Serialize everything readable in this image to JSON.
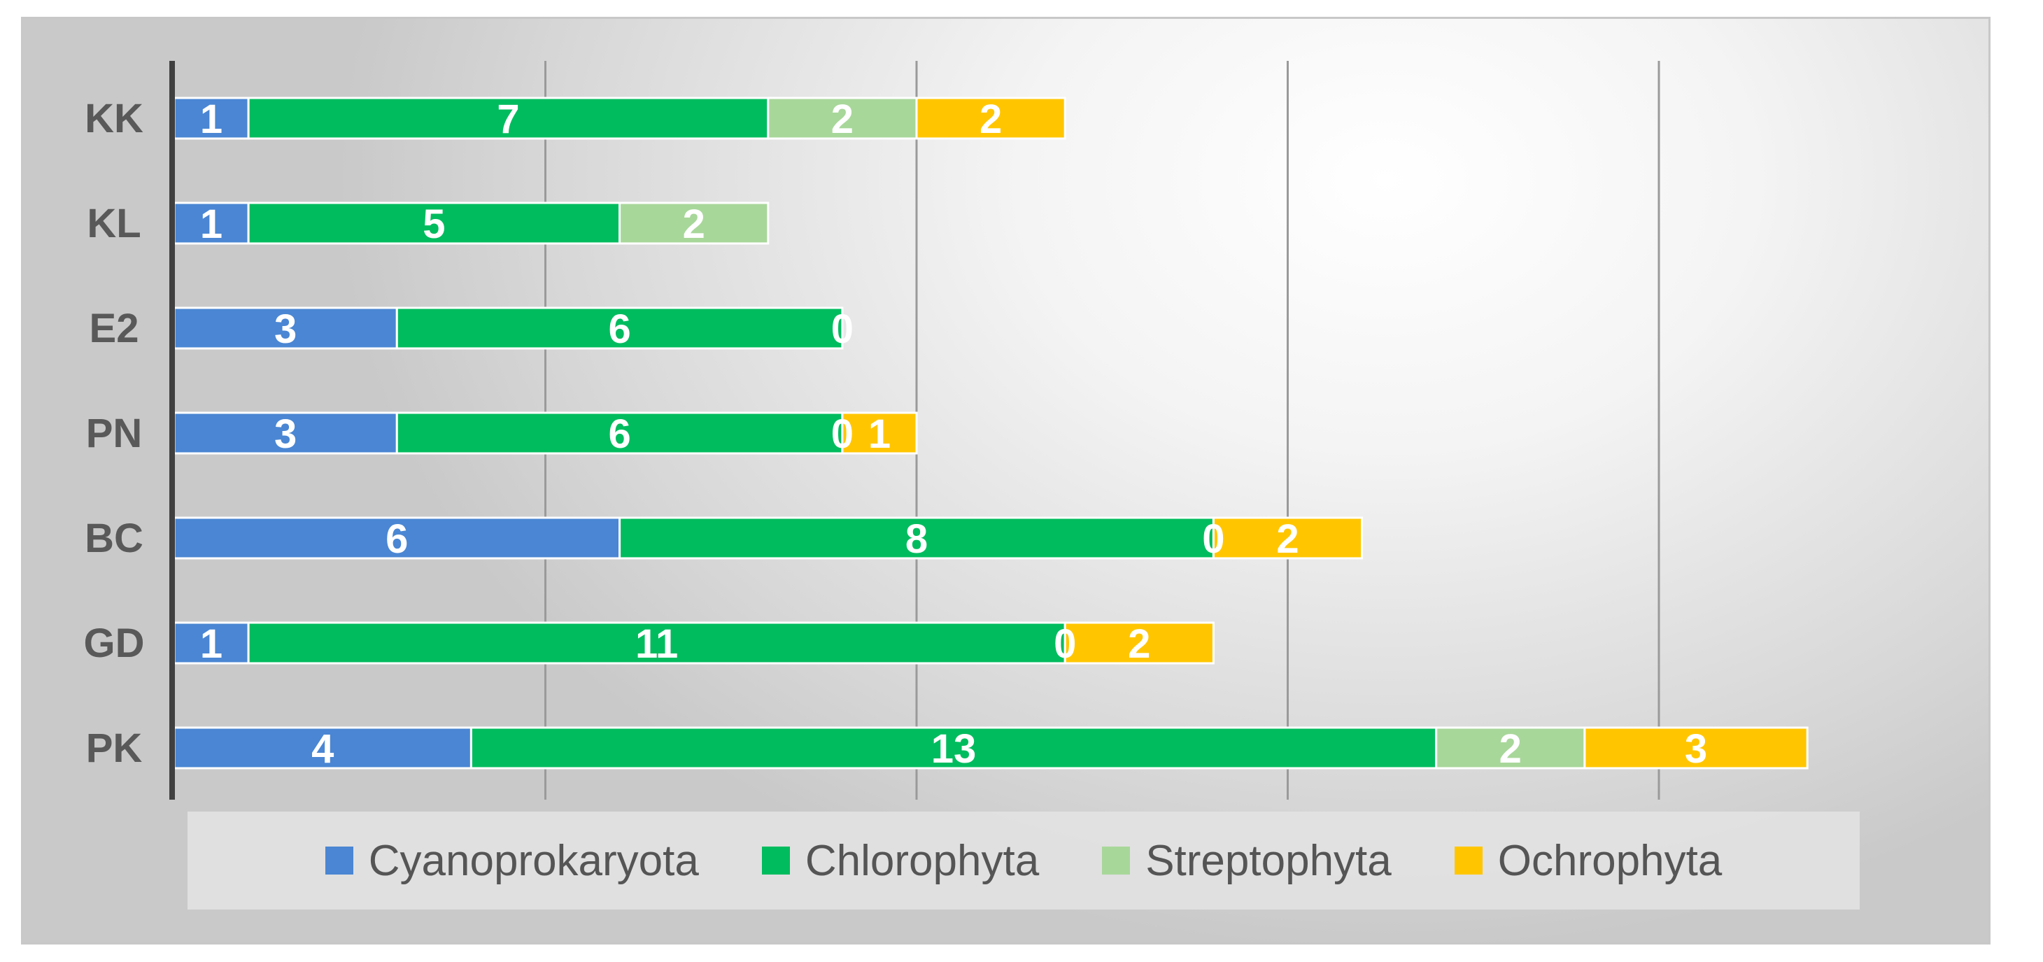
{
  "chart_data": {
    "type": "bar",
    "orientation": "horizontal",
    "stacked": true,
    "categories": [
      "KK",
      "KL",
      "E2",
      "PN",
      "BC",
      "GD",
      "PK"
    ],
    "series": [
      {
        "name": "Cyanoprokaryota",
        "color": "#4a86d3",
        "values": [
          1,
          1,
          3,
          3,
          6,
          1,
          4
        ]
      },
      {
        "name": "Chlorophyta",
        "color": "#00bc5e",
        "values": [
          7,
          5,
          6,
          6,
          8,
          11,
          13
        ]
      },
      {
        "name": "Streptophyta",
        "color": "#a8d79a",
        "values": [
          2,
          2,
          0,
          0,
          0,
          0,
          2
        ]
      },
      {
        "name": "Ochrophyta",
        "color": "#ffc600",
        "values": [
          2,
          0,
          0,
          1,
          2,
          2,
          3
        ]
      }
    ],
    "xlim": [
      0,
      25
    ],
    "x_gridlines": [
      5,
      10,
      15,
      20
    ],
    "grid": true,
    "legend_position": "bottom",
    "data_labels": true
  }
}
